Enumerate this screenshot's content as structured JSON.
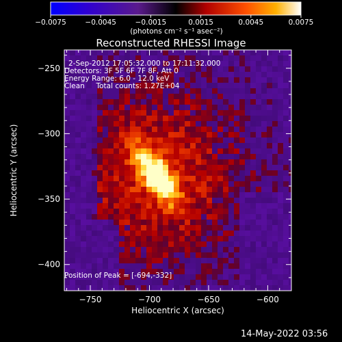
{
  "chart_data": {
    "type": "heatmap",
    "title": "Reconstructed RHESSI Image",
    "xlabel": "Heliocentric X (arcsec)",
    "ylabel": "Heliocentric Y (arcsec)",
    "xlim": [
      -772,
      -580
    ],
    "ylim": [
      -420,
      -236
    ],
    "x_ticks": [
      -750,
      -700,
      -650,
      -600
    ],
    "x_tick_labels": [
      "−750",
      "−700",
      "−650",
      "−600"
    ],
    "y_ticks": [
      -250,
      -300,
      -350,
      -400
    ],
    "y_tick_labels": [
      "−250",
      "−300",
      "−350",
      "−400"
    ],
    "colorbar": {
      "range": [
        -0.0075,
        0.0075
      ],
      "ticks": [
        -0.0075,
        -0.0045,
        -0.0015,
        0.0015,
        0.0045,
        0.0075
      ],
      "tick_labels": [
        "−0.0075",
        "−0.0045",
        "−0.0015",
        "0.0015",
        "0.0045",
        "0.0075"
      ],
      "unit_label": "(photons cm⁻² s⁻¹ asec⁻²)",
      "colormap": [
        "#0000ff",
        "#3a00c8",
        "#5a1a8c",
        "#000000",
        "#c00000",
        "#ff6000",
        "#ffc000",
        "#ffffff"
      ]
    },
    "peak": {
      "x": -694,
      "y": -332,
      "value": 0.0075
    },
    "annotations": {
      "time": "2-Sep-2012 17:05:32.000 to 17:11:32.000",
      "detectors": "Detectors: 3F 5F 6F 7F 8F, Att 0",
      "energy": "Energy Range: 6.0 - 12.0 keV",
      "clean": "Clean     Total counts: 1.27E+04",
      "peak_text": "Position of Peak = [-694,-332]"
    }
  },
  "footer": {
    "date": "14-May-2022 03:56"
  }
}
